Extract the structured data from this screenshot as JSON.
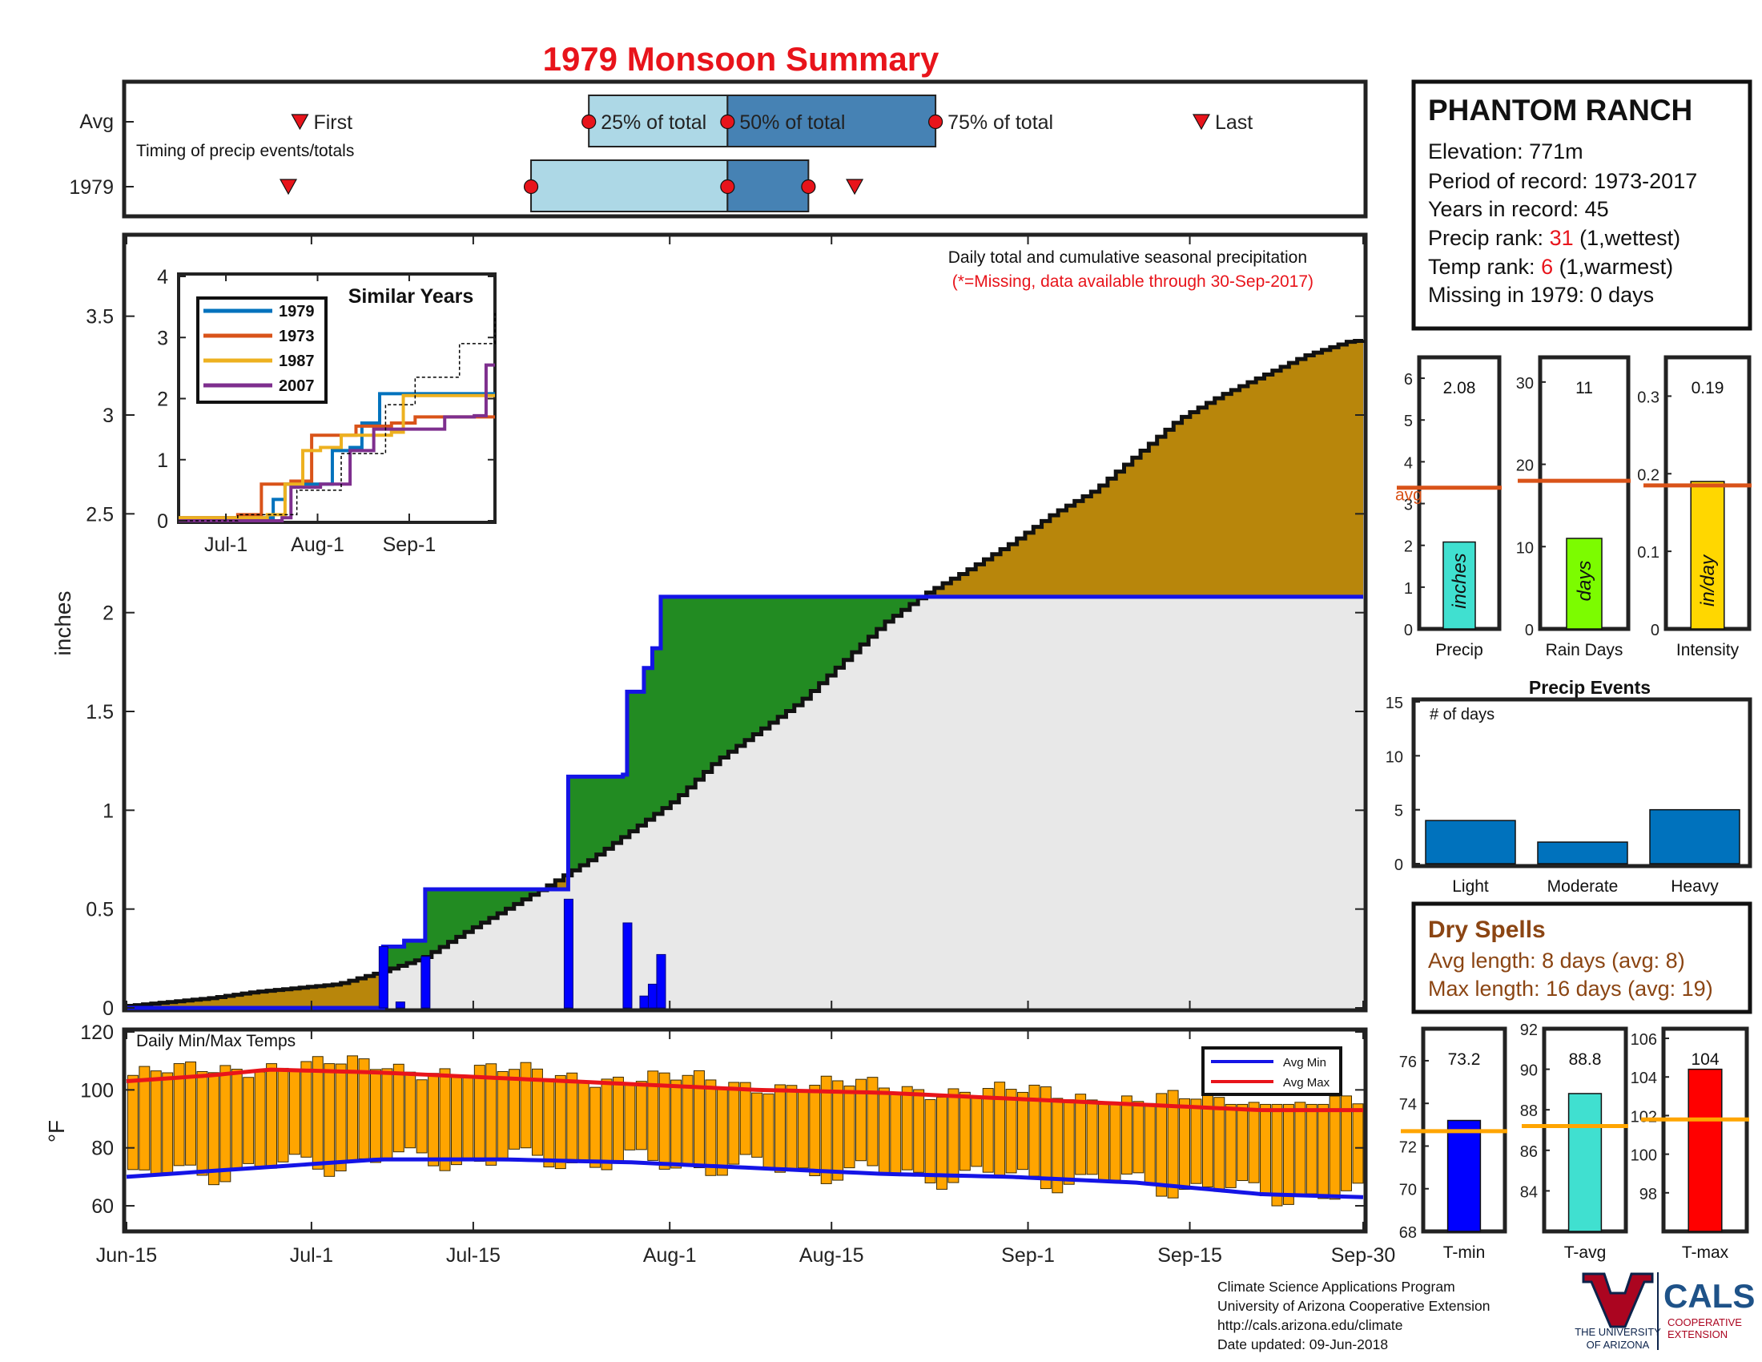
{
  "page": {
    "title": "1979 Monsoon Summary",
    "footer_lines": [
      "Climate Science Applications Program",
      "University of Arizona Cooperative Extension",
      "http://cals.arizona.edu/climate",
      " Date updated: 09-Jun-2018"
    ],
    "logos": {
      "ua_line1": "THE UNIVERSITY",
      "ua_line2": "OF ARIZONA",
      "cals": "CALS",
      "cals_line1": "COOPERATIVE",
      "cals_line2": "EXTENSION"
    }
  },
  "station": {
    "name": "PHANTOM RANCH",
    "elevation": "Elevation: 771m",
    "period": "Period of record: 1973-2017",
    "years": "Years in record: 45",
    "precip_rank_prefix": "Precip rank: ",
    "precip_rank_value": "31",
    "precip_rank_suffix": " (1,wettest)",
    "temp_rank_prefix": "Temp rank: ",
    "temp_rank_value": "6",
    "temp_rank_suffix": " (1,warmest)",
    "missing": "Missing in 1979: 0 days"
  },
  "dry_spells": {
    "title": "Dry Spells",
    "avg_length": "Avg length: 8 days (avg: 8)",
    "max_length": "Max length: 16 days (avg: 19)"
  },
  "colors": {
    "accent_red": "#e8141b",
    "cumulative_avg": "#b8860b",
    "above_avg": "#228b22",
    "observed_line": "#1414e6",
    "bars_temp": "#ffa500"
  },
  "chart_data": [
    {
      "id": "timing",
      "type": "bar",
      "subtitle": "Timing of precip events/totals",
      "rows": [
        "Avg",
        "1979"
      ],
      "avg_labels": {
        "first": "First",
        "p25": "25% of total",
        "p50": "50% of total",
        "p75": "75% of total",
        "last": "Last"
      },
      "avg": {
        "first": "2023-06-30",
        "p25": "2023-07-25",
        "p50": "2023-08-06",
        "p75": "2023-08-24",
        "last": "2023-09-16"
      },
      "year": {
        "first": "2023-06-29",
        "p25": "2023-07-20",
        "p50": "2023-08-06",
        "p75": "2023-08-13",
        "last": "2023-08-17"
      }
    },
    {
      "id": "cumulative",
      "type": "area",
      "title": "Daily total and cumulative seasonal precipitation",
      "subtitle": "(*=Missing, data available through 30-Sep-2017)",
      "ylabel": "inches",
      "ylim": [
        0,
        3.9
      ],
      "yticks": [
        0,
        0.5,
        1,
        1.5,
        2,
        2.5,
        3,
        3.5
      ],
      "xticks": [
        "Jun-15",
        "Jul-1",
        "Jul-15",
        "Aug-1",
        "Aug-15",
        "Sep-1",
        "Sep-15",
        "Sep-30"
      ],
      "avg_cumulative": [
        [
          0,
          0.01
        ],
        [
          5,
          0.03
        ],
        [
          10,
          0.05
        ],
        [
          15,
          0.08
        ],
        [
          20,
          0.1
        ],
        [
          25,
          0.12
        ],
        [
          30,
          0.18
        ],
        [
          35,
          0.25
        ],
        [
          40,
          0.38
        ],
        [
          45,
          0.5
        ],
        [
          50,
          0.62
        ],
        [
          55,
          0.75
        ],
        [
          60,
          0.9
        ],
        [
          65,
          1.05
        ],
        [
          70,
          1.25
        ],
        [
          75,
          1.4
        ],
        [
          80,
          1.55
        ],
        [
          85,
          1.75
        ],
        [
          90,
          1.95
        ],
        [
          95,
          2.1
        ],
        [
          100,
          2.22
        ],
        [
          105,
          2.35
        ],
        [
          110,
          2.5
        ],
        [
          115,
          2.62
        ],
        [
          120,
          2.8
        ],
        [
          125,
          2.98
        ],
        [
          130,
          3.1
        ],
        [
          135,
          3.2
        ],
        [
          140,
          3.3
        ],
        [
          145,
          3.37
        ],
        [
          147,
          3.38
        ]
      ],
      "observed_cumulative": [
        [
          0,
          0
        ],
        [
          16,
          0
        ],
        [
          30,
          0
        ],
        [
          30.5,
          0.31
        ],
        [
          33,
          0.34
        ],
        [
          35.5,
          0.6
        ],
        [
          52,
          0.6
        ],
        [
          52.5,
          1.17
        ],
        [
          59,
          1.18
        ],
        [
          59.5,
          1.6
        ],
        [
          61.5,
          1.72
        ],
        [
          62.5,
          1.82
        ],
        [
          63.5,
          2.08
        ],
        [
          147,
          2.08
        ]
      ],
      "daily": [
        {
          "day": 30.5,
          "value": 0.31
        },
        {
          "day": 32.5,
          "value": 0.03
        },
        {
          "day": 35.5,
          "value": 0.26
        },
        {
          "day": 52.5,
          "value": 0.55
        },
        {
          "day": 59.5,
          "value": 0.43
        },
        {
          "day": 61.5,
          "value": 0.06
        },
        {
          "day": 62.5,
          "value": 0.12
        },
        {
          "day": 63.5,
          "value": 0.27
        }
      ]
    },
    {
      "id": "similar_years",
      "type": "line",
      "title": "Similar Years",
      "ylim": [
        0,
        4
      ],
      "yticks": [
        0,
        1,
        2,
        3,
        4
      ],
      "xticks": [
        "Jul-1",
        "Aug-1",
        "Sep-1"
      ],
      "series": [
        {
          "name": "1979",
          "color": "#0072bd",
          "values": [
            [
              0,
              0.05
            ],
            [
              30,
              0.05
            ],
            [
              32,
              0.35
            ],
            [
              36,
              0.6
            ],
            [
              48,
              0.6
            ],
            [
              52,
              1.15
            ],
            [
              58,
              1.2
            ],
            [
              62,
              1.6
            ],
            [
              68,
              2.08
            ],
            [
              107,
              2.08
            ]
          ]
        },
        {
          "name": "1973",
          "color": "#d95319",
          "values": [
            [
              0,
              0.05
            ],
            [
              20,
              0.1
            ],
            [
              28,
              0.6
            ],
            [
              38,
              0.65
            ],
            [
              45,
              1.4
            ],
            [
              55,
              1.4
            ],
            [
              60,
              1.55
            ],
            [
              72,
              1.6
            ],
            [
              80,
              1.7
            ],
            [
              107,
              1.7
            ]
          ]
        },
        {
          "name": "1987",
          "color": "#edb120",
          "values": [
            [
              0,
              0.05
            ],
            [
              30,
              0.1
            ],
            [
              36,
              0.6
            ],
            [
              42,
              1.15
            ],
            [
              48,
              1.2
            ],
            [
              55,
              1.4
            ],
            [
              72,
              1.45
            ],
            [
              76,
              2.05
            ],
            [
              107,
              2.05
            ]
          ]
        },
        {
          "name": "2007",
          "color": "#7e2f8e",
          "values": [
            [
              0,
              0.0
            ],
            [
              35,
              0.05
            ],
            [
              38,
              0.55
            ],
            [
              48,
              0.6
            ],
            [
              58,
              1.15
            ],
            [
              66,
              1.5
            ],
            [
              90,
              1.7
            ],
            [
              100,
              1.72
            ],
            [
              104,
              2.55
            ],
            [
              107,
              2.55
            ]
          ]
        },
        {
          "name": "avg",
          "color": "#000000",
          "values": [
            [
              0,
              0.0
            ],
            [
              20,
              0.1
            ],
            [
              40,
              0.5
            ],
            [
              55,
              1.1
            ],
            [
              70,
              1.9
            ],
            [
              80,
              2.35
            ],
            [
              95,
              2.9
            ],
            [
              107,
              3.4
            ]
          ]
        }
      ]
    },
    {
      "id": "temps",
      "type": "bar",
      "title": "Daily Min/Max Temps",
      "ylabel": "°F",
      "ylim": [
        52,
        120
      ],
      "yticks": [
        60,
        80,
        100,
        120
      ],
      "legend": [
        "Avg Min",
        "Avg Max"
      ],
      "legend_position": "top-right",
      "xticks": [
        "Jun-15",
        "Jul-1",
        "Jul-15",
        "Aug-1",
        "Aug-15",
        "Sep-1",
        "Sep-15",
        "Sep-30"
      ],
      "avg_min": [
        [
          0,
          70
        ],
        [
          10,
          72
        ],
        [
          20,
          74
        ],
        [
          30,
          76
        ],
        [
          45,
          76
        ],
        [
          60,
          75
        ],
        [
          75,
          73
        ],
        [
          90,
          71
        ],
        [
          105,
          70
        ],
        [
          120,
          68
        ],
        [
          135,
          64
        ],
        [
          147,
          63
        ]
      ],
      "avg_max": [
        [
          0,
          103
        ],
        [
          10,
          105
        ],
        [
          17,
          107
        ],
        [
          30,
          106
        ],
        [
          45,
          104
        ],
        [
          60,
          102
        ],
        [
          75,
          100
        ],
        [
          90,
          99
        ],
        [
          105,
          97
        ],
        [
          120,
          95
        ],
        [
          135,
          93
        ],
        [
          147,
          93
        ]
      ],
      "max_range": [
        95,
        112
      ],
      "min_range": [
        60,
        80
      ]
    },
    {
      "id": "precip_total",
      "type": "bar",
      "xlabel": "Precip",
      "value": 2.08,
      "value_label": "2.08",
      "bar_label": "inches",
      "avg": 3.38,
      "avg_label": "avg",
      "ylim": [
        0,
        6.5
      ],
      "yticks": [
        0,
        1,
        2,
        3,
        4,
        5,
        6
      ],
      "color": "#40e0d0"
    },
    {
      "id": "rain_days",
      "type": "bar",
      "xlabel": "Rain Days",
      "value": 11,
      "value_label": "11",
      "bar_label": "days",
      "avg": 18,
      "ylim": [
        0,
        33
      ],
      "yticks": [
        0,
        10,
        20,
        30
      ],
      "color": "#7cfc00"
    },
    {
      "id": "intensity",
      "type": "bar",
      "xlabel": "Intensity",
      "value": 0.19,
      "value_label": "0.19",
      "bar_label": "in/day",
      "avg": 0.185,
      "ylim": [
        0,
        0.35
      ],
      "yticks": [
        0,
        0.1,
        0.2,
        0.3
      ],
      "color": "#ffd700"
    },
    {
      "id": "precip_events",
      "type": "bar",
      "title": "Precip Events",
      "ylabel": "# of days",
      "categories": [
        "Light",
        "Moderate",
        "Heavy"
      ],
      "values": [
        4,
        2,
        5
      ],
      "ylim": [
        0,
        15
      ],
      "yticks": [
        0,
        5,
        10,
        15
      ],
      "color": "#0072bd"
    },
    {
      "id": "tmin",
      "type": "bar",
      "xlabel": "T-min",
      "value": 73.2,
      "value_label": "73.2",
      "avg": 72.7,
      "ylim": [
        68,
        77.5
      ],
      "yticks": [
        68,
        70,
        72,
        74,
        76
      ],
      "color": "#0000ff"
    },
    {
      "id": "tavg",
      "type": "bar",
      "xlabel": "T-avg",
      "value": 88.8,
      "value_label": "88.8",
      "avg": 87.2,
      "ylim": [
        82,
        92
      ],
      "yticks": [
        84,
        86,
        88,
        90,
        92
      ],
      "color": "#40e0d0"
    },
    {
      "id": "tmax",
      "type": "bar",
      "xlabel": "T-max",
      "value": 104.4,
      "value_label": "104",
      "avg": 101.8,
      "ylim": [
        96,
        106.5
      ],
      "yticks": [
        98,
        100,
        102,
        104,
        106
      ],
      "color": "#ff0000"
    }
  ]
}
